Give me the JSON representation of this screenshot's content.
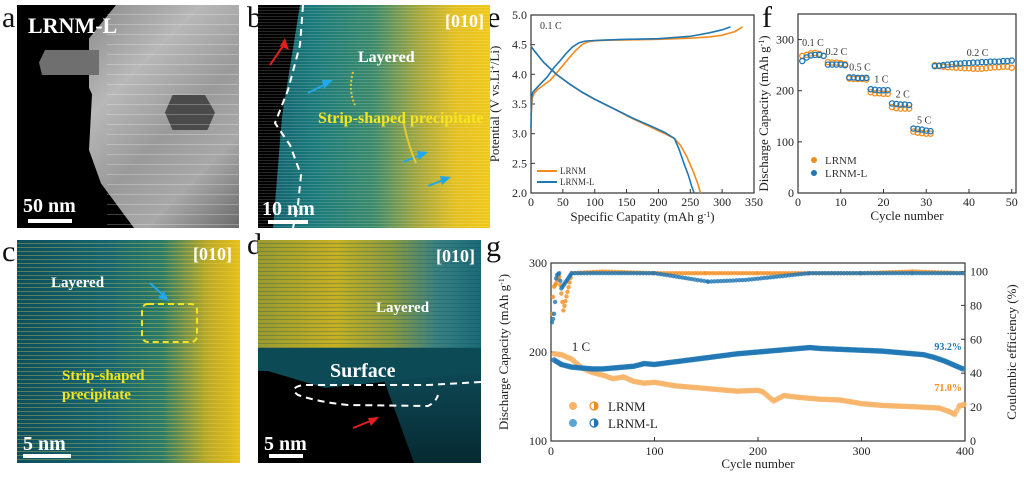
{
  "figure": {
    "panels": {
      "a": {
        "label": "a",
        "sample_label": "LRNM-L",
        "scalebar": "50 nm"
      },
      "b": {
        "label": "b",
        "zone_axis": "[010]",
        "annotations": [
          "Layered",
          "Strip-shaped precipitate"
        ],
        "scalebar": "10 nm"
      },
      "c": {
        "label": "c",
        "zone_axis": "[010]",
        "annotations": [
          "Layered",
          "Strip-shaped",
          "precipitate"
        ],
        "scalebar": "5 nm"
      },
      "d": {
        "label": "d",
        "zone_axis": "[010]",
        "annotations": [
          "Layered",
          "Surface"
        ],
        "scalebar": "5 nm"
      },
      "e": {
        "label": "e"
      },
      "f": {
        "label": "f"
      },
      "g": {
        "label": "g"
      }
    },
    "colors": {
      "lrnm": "#f28c1e",
      "lrnm_l": "#1f77b4",
      "lrnm_light": "#f7b56b",
      "lrnm_l_light": "#5aa7d6",
      "stem_blue": "#0f5b6b",
      "stem_yellow": "#e8c21a",
      "annotation_yellow": "#f5e520",
      "arrow_blue": "#20a8e8",
      "arrow_red": "#e02020"
    }
  },
  "chart_data": [
    {
      "id": "e",
      "type": "line",
      "title": "",
      "annotation": "0.1 C",
      "xlabel": "Specific Capatity (mAh g",
      "xlabel_sup": "-1",
      "xlabel_end": ")",
      "ylabel": "Potential (V vs.Li",
      "ylabel_sup": "+",
      "ylabel_end": "/Li)",
      "xlim": [
        0,
        350
      ],
      "ylim": [
        2.0,
        5.0
      ],
      "xticks": [
        0,
        50,
        100,
        150,
        200,
        250,
        300,
        350
      ],
      "yticks": [
        2.0,
        2.5,
        3.0,
        3.5,
        4.0,
        4.5,
        5.0
      ],
      "legend": {
        "position": "bottom-left",
        "entries": [
          "LRNM",
          "LRNM-L"
        ]
      },
      "series": [
        {
          "name": "LRNM",
          "kind": "charge",
          "x": [
            0,
            2,
            5,
            10,
            20,
            30,
            40,
            50,
            60,
            70,
            80,
            90,
            100,
            120,
            150,
            200,
            250,
            280,
            300,
            320,
            332
          ],
          "y": [
            3.3,
            3.6,
            3.68,
            3.74,
            3.82,
            3.9,
            4.02,
            4.15,
            4.28,
            4.4,
            4.5,
            4.55,
            4.565,
            4.575,
            4.58,
            4.59,
            4.61,
            4.63,
            4.66,
            4.72,
            4.8
          ]
        },
        {
          "name": "LRNM",
          "kind": "discharge",
          "x": [
            0,
            5,
            20,
            40,
            60,
            80,
            100,
            130,
            160,
            190,
            210,
            225,
            235,
            245,
            255,
            262,
            266
          ],
          "y": [
            4.48,
            4.4,
            4.2,
            4.0,
            3.84,
            3.7,
            3.58,
            3.42,
            3.25,
            3.1,
            3.0,
            2.92,
            2.8,
            2.6,
            2.35,
            2.15,
            2.0
          ]
        },
        {
          "name": "LRNM-L",
          "kind": "charge",
          "x": [
            0,
            1,
            3,
            8,
            15,
            25,
            35,
            45,
            55,
            65,
            75,
            85,
            100,
            120,
            150,
            200,
            250,
            280,
            300,
            313
          ],
          "y": [
            3.1,
            3.62,
            3.7,
            3.76,
            3.84,
            3.95,
            4.1,
            4.22,
            4.35,
            4.46,
            4.53,
            4.56,
            4.57,
            4.58,
            4.59,
            4.6,
            4.64,
            4.7,
            4.75,
            4.8
          ]
        },
        {
          "name": "LRNM-L",
          "kind": "discharge",
          "x": [
            0,
            5,
            20,
            40,
            60,
            80,
            100,
            130,
            160,
            190,
            210,
            225,
            232,
            240,
            247,
            252,
            256
          ],
          "y": [
            4.47,
            4.4,
            4.2,
            4.0,
            3.84,
            3.7,
            3.58,
            3.42,
            3.26,
            3.12,
            3.02,
            2.92,
            2.75,
            2.5,
            2.3,
            2.12,
            2.0
          ]
        }
      ]
    },
    {
      "id": "f",
      "type": "scatter",
      "title": "",
      "xlabel": "Cycle number",
      "ylabel": "Discharge Capacity (mAh g",
      "ylabel_sup": "-1",
      "ylabel_end": ")",
      "xlim": [
        0,
        51
      ],
      "ylim": [
        0,
        350
      ],
      "xticks": [
        0,
        10,
        20,
        30,
        40,
        50
      ],
      "yticks": [
        0,
        100,
        200,
        300
      ],
      "legend": {
        "position": "bottom-left",
        "entries": [
          "LRNM",
          "LRNM-L"
        ]
      },
      "rate_labels": [
        {
          "text": "0.1 C",
          "x": 3.5,
          "y": 287
        },
        {
          "text": "0.2 C",
          "x": 9,
          "y": 270
        },
        {
          "text": "0.5 C",
          "x": 14.5,
          "y": 240
        },
        {
          "text": "1 C",
          "x": 19.5,
          "y": 216
        },
        {
          "text": "2 C",
          "x": 24.5,
          "y": 187
        },
        {
          "text": "5 C",
          "x": 29.5,
          "y": 136
        },
        {
          "text": "0.2 C",
          "x": 42,
          "y": 268
        }
      ],
      "series": [
        {
          "name": "LRNM",
          "x": [
            1,
            2,
            3,
            4,
            5,
            6,
            7,
            8,
            9,
            10,
            11,
            12,
            13,
            14,
            15,
            16,
            17,
            18,
            19,
            20,
            21,
            22,
            23,
            24,
            25,
            26,
            27,
            28,
            29,
            30,
            31,
            32,
            33,
            34,
            35,
            36,
            37,
            38,
            39,
            40,
            41,
            42,
            43,
            44,
            45,
            46,
            47,
            48,
            49,
            50
          ],
          "y": [
            268,
            270,
            273,
            274,
            272,
            268,
            256,
            255,
            255,
            254,
            252,
            224,
            223,
            223,
            223,
            222,
            197,
            195,
            195,
            194,
            194,
            168,
            166,
            165,
            165,
            165,
            120,
            118,
            117,
            116,
            116,
            250,
            248,
            247,
            246,
            246,
            245,
            245,
            244,
            244,
            243,
            243,
            243,
            244,
            245,
            246,
            246,
            247,
            247,
            245
          ]
        },
        {
          "name": "LRNM-L",
          "x": [
            1,
            2,
            3,
            4,
            5,
            6,
            7,
            8,
            9,
            10,
            11,
            12,
            13,
            14,
            15,
            16,
            17,
            18,
            19,
            20,
            21,
            22,
            23,
            24,
            25,
            26,
            27,
            28,
            29,
            30,
            31,
            32,
            33,
            34,
            35,
            36,
            37,
            38,
            39,
            40,
            41,
            42,
            43,
            44,
            45,
            46,
            47,
            48,
            49,
            50
          ],
          "y": [
            258,
            265,
            269,
            270,
            270,
            268,
            251,
            251,
            251,
            251,
            250,
            226,
            226,
            225,
            225,
            225,
            203,
            202,
            201,
            201,
            201,
            175,
            174,
            173,
            173,
            172,
            126,
            125,
            124,
            122,
            121,
            248,
            249,
            250,
            251,
            252,
            253,
            253,
            254,
            254,
            255,
            255,
            256,
            256,
            257,
            257,
            257,
            258,
            258,
            259
          ]
        }
      ]
    },
    {
      "id": "g",
      "type": "scatter",
      "title": "",
      "annotation": "1 C",
      "xlabel": "Cycle number",
      "ylabel": "Discharge Capacity (mAh g",
      "ylabel_sup": "-1",
      "ylabel_end": ")",
      "ylabel_right": "Coulombic efficiency (%)",
      "xlim": [
        0,
        400
      ],
      "ylim": [
        100,
        300
      ],
      "ylim_right": [
        0,
        105
      ],
      "xticks": [
        0,
        100,
        200,
        300,
        400
      ],
      "yticks": [
        100,
        200,
        300
      ],
      "yticks_right": [
        0,
        20,
        40,
        60,
        80,
        100
      ],
      "retention_labels": [
        {
          "text": "93.2%",
          "series": "LRNM-L"
        },
        {
          "text": "71.0%",
          "series": "LRNM"
        }
      ],
      "legend": {
        "position": "bottom-left",
        "entries": [
          "LRNM",
          "LRNM-L"
        ]
      },
      "series": [
        {
          "name": "LRNM",
          "axis": "capacity",
          "x": [
            3,
            10,
            20,
            30,
            40,
            50,
            60,
            70,
            80,
            90,
            100,
            120,
            140,
            160,
            180,
            200,
            205,
            215,
            225,
            240,
            260,
            280,
            300,
            320,
            340,
            360,
            375,
            385,
            390,
            395,
            400
          ],
          "y": [
            198,
            197,
            192,
            182,
            177,
            174,
            170,
            172,
            167,
            165,
            166,
            162,
            160,
            158,
            156,
            157,
            155,
            145,
            151,
            149,
            147,
            146,
            142,
            140,
            139,
            138,
            137,
            133,
            130,
            140,
            141
          ]
        },
        {
          "name": "LRNM-L",
          "axis": "capacity",
          "x": [
            3,
            10,
            20,
            30,
            40,
            50,
            60,
            70,
            80,
            90,
            100,
            120,
            140,
            160,
            180,
            200,
            220,
            240,
            250,
            260,
            280,
            300,
            320,
            340,
            360,
            370,
            380,
            390,
            400
          ],
          "y": [
            191,
            186,
            183,
            182,
            181,
            181,
            182,
            183,
            184,
            187,
            186,
            189,
            192,
            195,
            198,
            200,
            202,
            204,
            205,
            204,
            203,
            202,
            201,
            199,
            197,
            194,
            190,
            185,
            180
          ]
        },
        {
          "name": "LRNM",
          "axis": "efficiency",
          "x": [
            1,
            2,
            3,
            4,
            5,
            6,
            8,
            12,
            20,
            50,
            100,
            150,
            200,
            250,
            300,
            350,
            400
          ],
          "y": [
            75,
            85,
            91,
            92,
            93,
            95,
            97,
            77,
            99,
            100,
            99,
            99,
            99,
            99,
            99,
            100,
            99
          ]
        },
        {
          "name": "LRNM-L",
          "axis": "efficiency",
          "x": [
            1,
            2,
            3,
            4,
            5,
            6,
            8,
            10,
            20,
            50,
            100,
            152,
            188,
            250,
            300,
            350,
            400
          ],
          "y": [
            70,
            72,
            75,
            82,
            96,
            98,
            99,
            90,
            99,
            99,
            99,
            94,
            95,
            99,
            99,
            99,
            99
          ]
        }
      ]
    }
  ]
}
